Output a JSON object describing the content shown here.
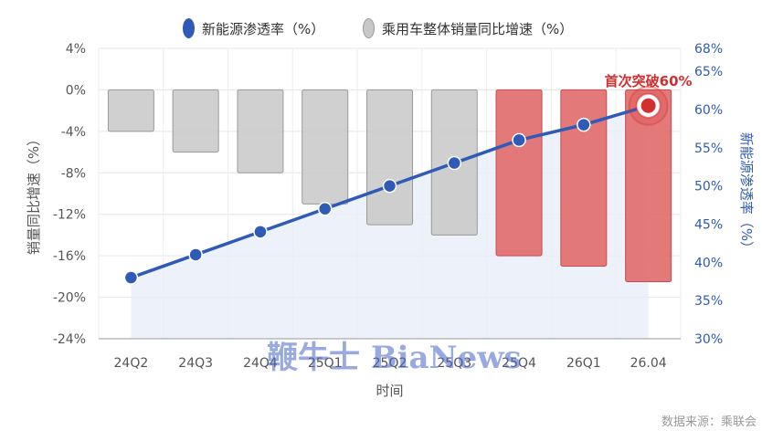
{
  "chart_data": {
    "type": "bar+line",
    "categories": [
      "24Q2",
      "24Q3",
      "24Q4",
      "25Q1",
      "25Q2",
      "25Q3",
      "25Q4",
      "26Q1",
      "26.04"
    ],
    "series": [
      {
        "name": "乘用车整体销量同比增速（%）",
        "type": "bar",
        "axis": "left",
        "values": [
          -4,
          -6,
          -8,
          -11,
          -13,
          -14,
          -16,
          -17,
          -18.5
        ],
        "colors": [
          "#c8c8c8",
          "#c8c8c8",
          "#c8c8c8",
          "#c8c8c8",
          "#c8c8c8",
          "#c8c8c8",
          "#e06666",
          "#e06666",
          "#e06666"
        ]
      },
      {
        "name": "新能源渗透率（%）",
        "type": "line",
        "axis": "right",
        "values": [
          38,
          41,
          44,
          47,
          50,
          53,
          56,
          58,
          60.5
        ],
        "color": "#2f5bb7"
      }
    ],
    "xlabel": "时间",
    "ylabel_left": "销量同比增速（%）",
    "ylabel_right": "新能源渗透率（%）",
    "ylim_left": [
      -24,
      4
    ],
    "yticks_left": [
      "4%",
      "0%",
      "-4%",
      "-8%",
      "-12%",
      "-16%",
      "-20%",
      "-24%"
    ],
    "ylim_right": [
      30,
      68
    ],
    "yticks_right": [
      "68%",
      "65%",
      "60%",
      "55%",
      "50%",
      "45%",
      "40%",
      "35%",
      "30%"
    ],
    "annotation": "首次突破60%",
    "legend_position": "top-center",
    "grid": true
  },
  "source_text": "数据来源：乘联会",
  "watermark_text": "鞭牛士 BiaNews",
  "colors": {
    "line": "#2f5bb7",
    "bar_gray": "#c8c8c8",
    "bar_red": "#e06666",
    "area": "#e8edf8",
    "annotation": "#d32f2f"
  }
}
